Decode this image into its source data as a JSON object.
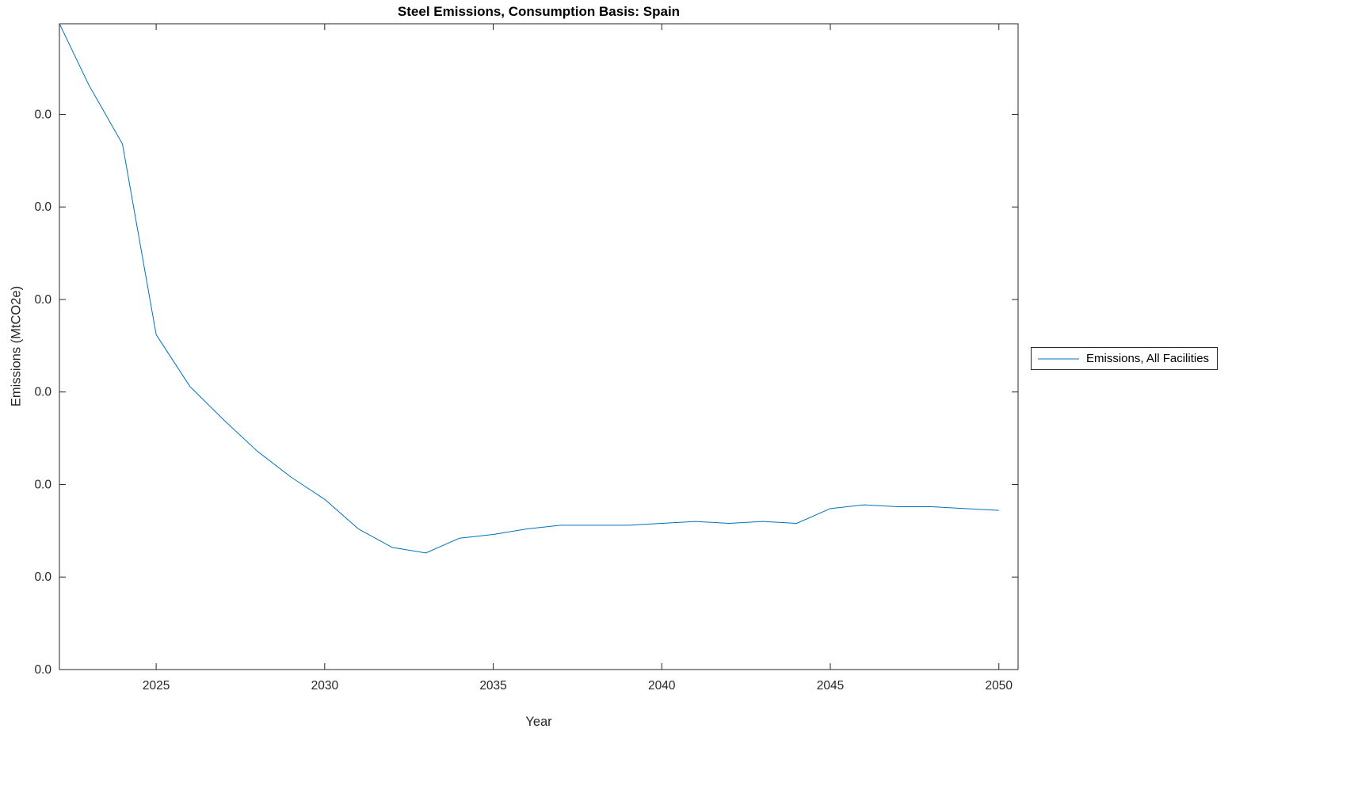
{
  "figure": {
    "title": "Steel Emissions, Consumption Basis: Spain",
    "xlabel": "Year",
    "ylabel": "Emissions (MtCO2e)"
  },
  "legend": {
    "entries": [
      {
        "label": "Emissions, All Facilities",
        "color": "#0072BD"
      }
    ]
  },
  "chart_data": {
    "type": "line",
    "title": "Steel Emissions, Consumption Basis: Spain",
    "xlabel": "Year",
    "ylabel": "Emissions (MtCO2e)",
    "x": [
      2022,
      2023,
      2024,
      2025,
      2026,
      2027,
      2028,
      2029,
      2030,
      2031,
      2032,
      2033,
      2034,
      2035,
      2036,
      2037,
      2038,
      2039,
      2040,
      2041,
      2042,
      2043,
      2044,
      2045,
      2046,
      2047,
      2048,
      2049,
      2050
    ],
    "series": [
      {
        "name": "Emissions, All Facilities",
        "color": "#0072BD",
        "values": [
          0.0354,
          0.0316,
          0.0284,
          0.0181,
          0.0153,
          0.0135,
          0.0118,
          0.0104,
          0.0092,
          0.0076,
          0.0066,
          0.0063,
          0.0071,
          0.0073,
          0.0076,
          0.0078,
          0.0078,
          0.0078,
          0.0079,
          0.008,
          0.0079,
          0.008,
          0.0079,
          0.0087,
          0.0089,
          0.0088,
          0.0088,
          0.0087,
          0.0086
        ]
      }
    ],
    "xlim": [
      2022.13,
      2050.57
    ],
    "ylim": [
      0,
      0.0349
    ],
    "xticks": [
      2025,
      2030,
      2035,
      2040,
      2045,
      2050
    ],
    "xtick_labels": [
      "2025",
      "2030",
      "2035",
      "2040",
      "2045",
      "2050"
    ],
    "yticks": [
      0,
      0.005,
      0.01,
      0.015,
      0.02,
      0.025,
      0.03
    ],
    "ytick_labels": [
      "0.0",
      "0.0",
      "0.0",
      "0.0",
      "0.0",
      "0.0",
      "0.0"
    ],
    "axis_color": "#262626",
    "line_width": 1,
    "grid": false,
    "legend_position": "right-outside"
  }
}
